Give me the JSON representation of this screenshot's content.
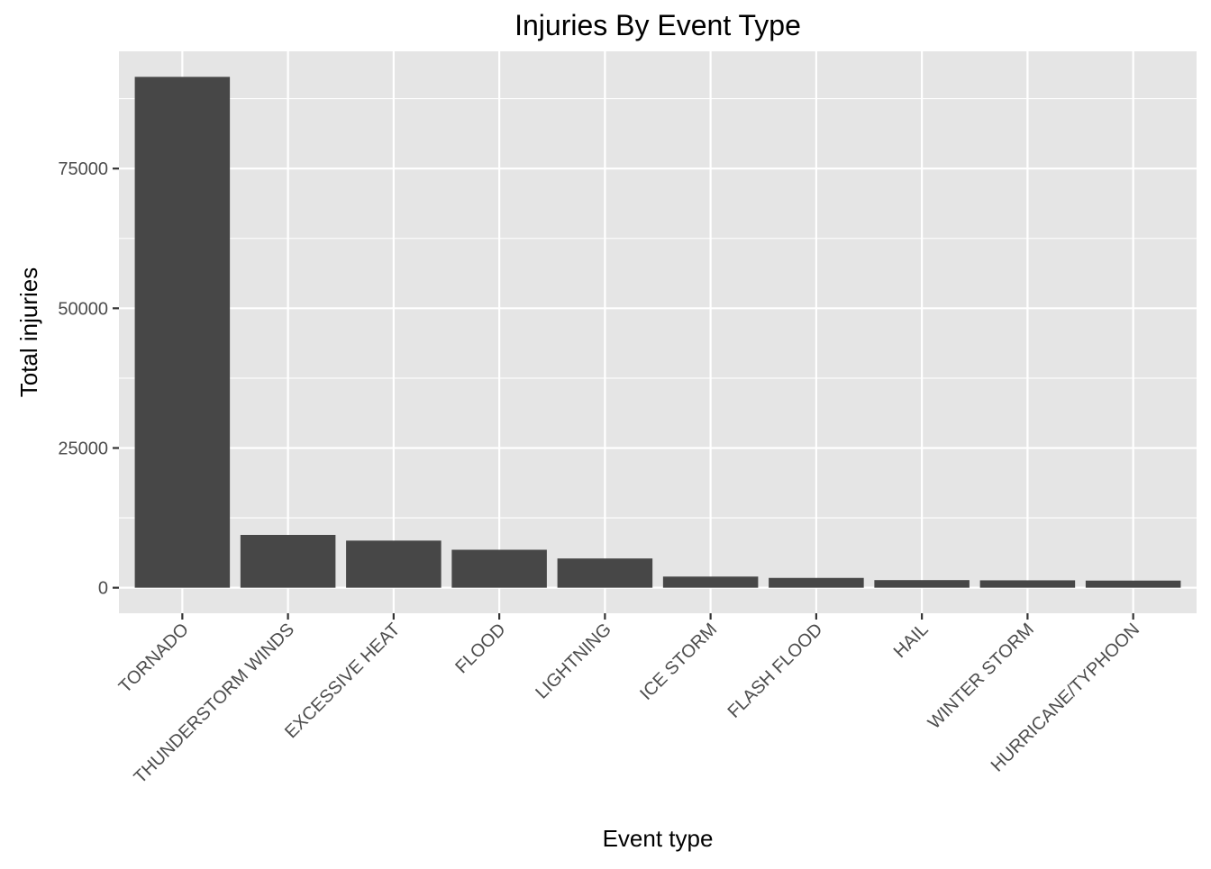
{
  "chart_data": {
    "type": "bar",
    "title": "Injuries By Event Type",
    "xlabel": "Event type",
    "ylabel": "Total injuries",
    "categories": [
      "TORNADO",
      "THUNDERSTORM WINDS",
      "EXCESSIVE HEAT",
      "FLOOD",
      "LIGHTNING",
      "ICE STORM",
      "FLASH FLOOD",
      "HAIL",
      "WINTER STORM",
      "HURRICANE/TYPHOON"
    ],
    "values": [
      91407,
      9448,
      8428,
      6791,
      5231,
      1992,
      1754,
      1361,
      1321,
      1275
    ],
    "ylim": [
      -4570,
      95977
    ],
    "yticks": [
      0,
      25000,
      50000,
      75000
    ],
    "ytick_labels": [
      "0",
      "25000",
      "50000",
      "75000"
    ],
    "grid": true,
    "legend": "none",
    "colors": {
      "panel": "#e5e5e5",
      "grid": "#ffffff",
      "bar": "#474747",
      "text": "#1a1a1a",
      "tick_text": "#4d4d4d",
      "tick_mark": "#333333"
    }
  }
}
